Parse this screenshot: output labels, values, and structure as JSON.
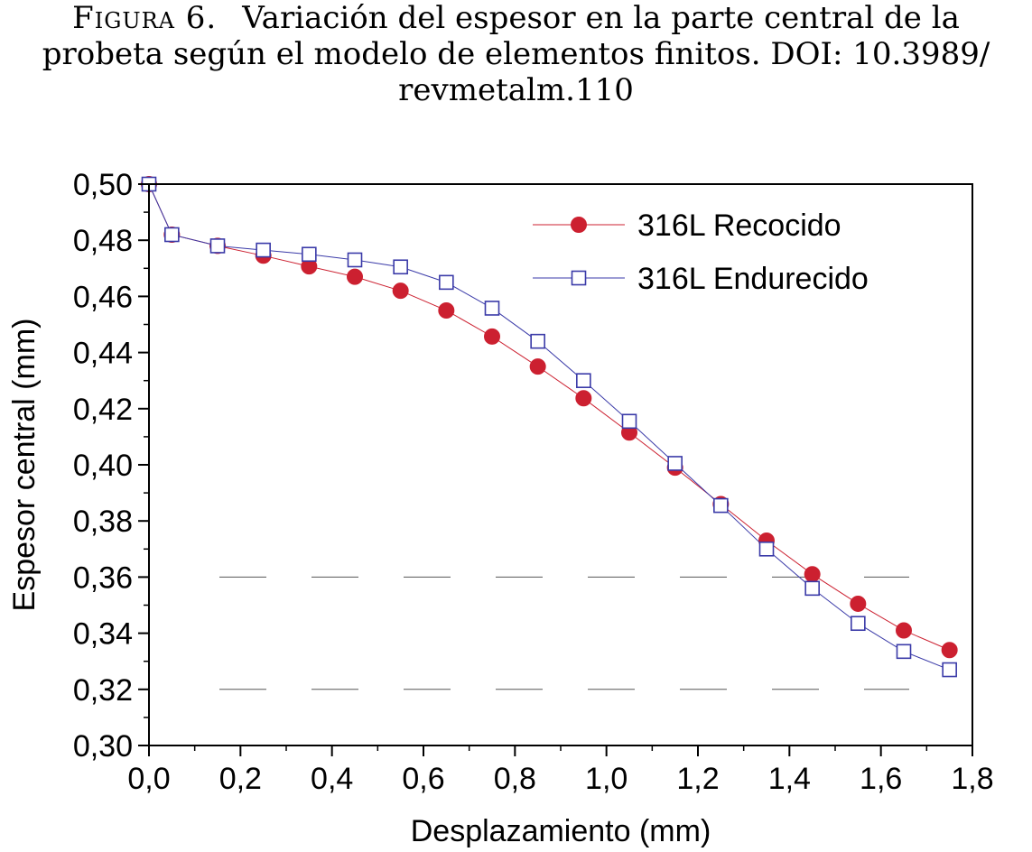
{
  "caption": {
    "label": "Figura 6.",
    "line1": "Variación del espesor en la parte central de la",
    "line2": "probeta según el modelo de elementos finitos. DOI: 10.3989/",
    "line3": "revmetalm.110"
  },
  "chart_data": {
    "type": "line",
    "xlabel": "Desplazamiento (mm)",
    "ylabel": "Espesor central (mm)",
    "xlim": [
      0.0,
      1.8
    ],
    "ylim": [
      0.3,
      0.5
    ],
    "xticks": [
      "0,0",
      "0,2",
      "0,4",
      "0,6",
      "0,8",
      "1,0",
      "1,2",
      "1,4",
      "1,6",
      "1,8"
    ],
    "yticks": [
      "0,30",
      "0,32",
      "0,34",
      "0,36",
      "0,38",
      "0,40",
      "0,42",
      "0,44",
      "0,46",
      "0,48",
      "0,50"
    ],
    "reference_lines_y": [
      0.32,
      0.36
    ],
    "legend_position": "top-right",
    "series": [
      {
        "name": "316L Recocido",
        "marker": "filled-circle",
        "color": "#cc2030",
        "x": [
          0.0,
          0.05,
          0.15,
          0.25,
          0.35,
          0.45,
          0.55,
          0.65,
          0.75,
          0.85,
          0.95,
          1.05,
          1.15,
          1.25,
          1.35,
          1.45,
          1.55,
          1.65,
          1.75
        ],
        "y": [
          0.5,
          0.482,
          0.478,
          0.4745,
          0.4707,
          0.467,
          0.462,
          0.455,
          0.4457,
          0.435,
          0.4237,
          0.4115,
          0.399,
          0.386,
          0.373,
          0.361,
          0.3505,
          0.341,
          0.334
        ]
      },
      {
        "name": "316L Endurecido",
        "marker": "open-square",
        "color": "#3a3aa8",
        "x": [
          0.0,
          0.05,
          0.15,
          0.25,
          0.35,
          0.45,
          0.55,
          0.65,
          0.75,
          0.85,
          0.95,
          1.05,
          1.15,
          1.25,
          1.35,
          1.45,
          1.55,
          1.65,
          1.75
        ],
        "y": [
          0.5,
          0.482,
          0.478,
          0.4765,
          0.475,
          0.473,
          0.4705,
          0.465,
          0.4558,
          0.444,
          0.43,
          0.4155,
          0.4005,
          0.3855,
          0.37,
          0.356,
          0.3435,
          0.3335,
          0.327
        ]
      }
    ]
  }
}
